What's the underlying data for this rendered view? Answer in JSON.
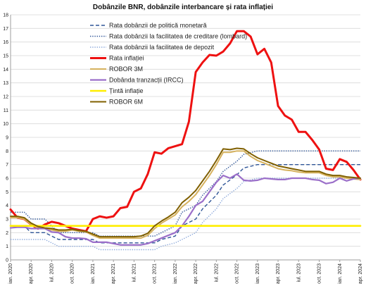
{
  "chart_data": {
    "type": "line",
    "title": "Dobânzile BNR, dobânzile interbancare și rata inflației",
    "xlabel": "",
    "ylabel": "",
    "ylim": [
      0,
      18
    ],
    "yticks": [
      0,
      1,
      2,
      3,
      4,
      5,
      6,
      7,
      8,
      9,
      10,
      11,
      12,
      13,
      14,
      15,
      16,
      17,
      18
    ],
    "xlim": [
      "2020-01",
      "2024-04"
    ],
    "xtick_labels": [
      "ian. 2020",
      "apr. 2020",
      "iul. 2020",
      "oct. 2020",
      "ian. 2021",
      "apr. 2021",
      "iul. 2021",
      "oct. 2021",
      "ian. 2022",
      "apr. 2022",
      "iul. 2022",
      "oct. 2022",
      "ian. 2023",
      "apr. 2023",
      "iul. 2023",
      "oct. 2023",
      "ian. 2024",
      "apr. 2024"
    ],
    "xtick_months": [
      "2020-01",
      "2020-04",
      "2020-07",
      "2020-10",
      "2021-01",
      "2021-04",
      "2021-07",
      "2021-10",
      "2022-01",
      "2022-04",
      "2022-07",
      "2022-10",
      "2023-01",
      "2023-04",
      "2023-07",
      "2023-10",
      "2024-01",
      "2024-04"
    ],
    "grid": true,
    "legend_position": "top-center",
    "series": [
      {
        "name": "Rata dobânzii de politică monetară",
        "color": "#2f5597",
        "style": "dashed",
        "width": 1.4,
        "points": [
          [
            "2020-01",
            2.5
          ],
          [
            "2020-03",
            2.5
          ],
          [
            "2020-04",
            2.0
          ],
          [
            "2020-06",
            2.0
          ],
          [
            "2020-07",
            1.75
          ],
          [
            "2020-08",
            1.5
          ],
          [
            "2021-01",
            1.5
          ],
          [
            "2021-02",
            1.25
          ],
          [
            "2021-10",
            1.25
          ],
          [
            "2021-11",
            1.5
          ],
          [
            "2022-01",
            1.75
          ],
          [
            "2022-02",
            2.5
          ],
          [
            "2022-04",
            3.0
          ],
          [
            "2022-05",
            3.75
          ],
          [
            "2022-07",
            4.75
          ],
          [
            "2022-08",
            5.5
          ],
          [
            "2022-10",
            6.25
          ],
          [
            "2022-11",
            6.75
          ],
          [
            "2023-01",
            7.0
          ],
          [
            "2024-04",
            7.0
          ]
        ]
      },
      {
        "name": "Rata dobânzii la facilitatea de creditare (lombard)",
        "color": "#2f5597",
        "style": "dotted",
        "width": 1.4,
        "points": [
          [
            "2020-01",
            3.5
          ],
          [
            "2020-03",
            3.5
          ],
          [
            "2020-04",
            3.0
          ],
          [
            "2020-06",
            3.0
          ],
          [
            "2020-07",
            2.5
          ],
          [
            "2020-08",
            2.0
          ],
          [
            "2021-01",
            2.0
          ],
          [
            "2021-02",
            1.75
          ],
          [
            "2021-10",
            1.75
          ],
          [
            "2021-11",
            2.0
          ],
          [
            "2022-01",
            2.5
          ],
          [
            "2022-02",
            3.5
          ],
          [
            "2022-04",
            4.0
          ],
          [
            "2022-05",
            4.75
          ],
          [
            "2022-07",
            5.75
          ],
          [
            "2022-08",
            6.5
          ],
          [
            "2022-10",
            7.25
          ],
          [
            "2022-11",
            7.75
          ],
          [
            "2023-01",
            8.0
          ],
          [
            "2024-04",
            8.0
          ]
        ]
      },
      {
        "name": "Rata dobânzii la facilitatea de depozit",
        "color": "#8eaadb",
        "style": "dotted",
        "width": 1.4,
        "points": [
          [
            "2020-01",
            1.5
          ],
          [
            "2020-03",
            1.5
          ],
          [
            "2020-04",
            1.5
          ],
          [
            "2020-06",
            1.5
          ],
          [
            "2020-07",
            1.25
          ],
          [
            "2020-08",
            1.0
          ],
          [
            "2021-01",
            1.0
          ],
          [
            "2021-02",
            0.75
          ],
          [
            "2021-10",
            0.75
          ],
          [
            "2021-11",
            1.0
          ],
          [
            "2022-01",
            1.25
          ],
          [
            "2022-02",
            1.5
          ],
          [
            "2022-04",
            2.0
          ],
          [
            "2022-05",
            2.75
          ],
          [
            "2022-07",
            3.75
          ],
          [
            "2022-08",
            4.5
          ],
          [
            "2022-10",
            5.25
          ],
          [
            "2022-11",
            5.75
          ],
          [
            "2023-01",
            6.0
          ],
          [
            "2024-04",
            6.0
          ]
        ]
      },
      {
        "name": "Rata inflației",
        "color": "#ee1111",
        "style": "solid",
        "width": 3,
        "points": [
          [
            "2020-01",
            3.7
          ],
          [
            "2020-02",
            3.1
          ],
          [
            "2020-03",
            3.0
          ],
          [
            "2020-04",
            2.6
          ],
          [
            "2020-05",
            2.3
          ],
          [
            "2020-06",
            2.6
          ],
          [
            "2020-07",
            2.8
          ],
          [
            "2020-08",
            2.7
          ],
          [
            "2020-09",
            2.5
          ],
          [
            "2020-10",
            2.3
          ],
          [
            "2020-11",
            2.2
          ],
          [
            "2020-12",
            2.1
          ],
          [
            "2021-01",
            3.0
          ],
          [
            "2021-02",
            3.2
          ],
          [
            "2021-03",
            3.1
          ],
          [
            "2021-04",
            3.2
          ],
          [
            "2021-05",
            3.8
          ],
          [
            "2021-06",
            3.9
          ],
          [
            "2021-07",
            5.0
          ],
          [
            "2021-08",
            5.25
          ],
          [
            "2021-09",
            6.3
          ],
          [
            "2021-10",
            7.9
          ],
          [
            "2021-11",
            7.8
          ],
          [
            "2021-12",
            8.2
          ],
          [
            "2022-01",
            8.35
          ],
          [
            "2022-02",
            8.5
          ],
          [
            "2022-03",
            10.15
          ],
          [
            "2022-04",
            13.8
          ],
          [
            "2022-05",
            14.5
          ],
          [
            "2022-06",
            15.05
          ],
          [
            "2022-07",
            15.0
          ],
          [
            "2022-08",
            15.3
          ],
          [
            "2022-09",
            15.9
          ],
          [
            "2022-10",
            16.8
          ],
          [
            "2022-11",
            16.8
          ],
          [
            "2022-12",
            16.4
          ],
          [
            "2023-01",
            15.1
          ],
          [
            "2023-02",
            15.5
          ],
          [
            "2023-03",
            14.5
          ],
          [
            "2023-04",
            11.3
          ],
          [
            "2023-05",
            10.6
          ],
          [
            "2023-06",
            10.3
          ],
          [
            "2023-07",
            9.4
          ],
          [
            "2023-08",
            9.4
          ],
          [
            "2023-09",
            8.8
          ],
          [
            "2023-10",
            8.1
          ],
          [
            "2023-11",
            6.7
          ],
          [
            "2023-12",
            6.6
          ],
          [
            "2024-01",
            7.4
          ],
          [
            "2024-02",
            7.2
          ],
          [
            "2024-03",
            6.6
          ],
          [
            "2024-04",
            5.9
          ]
        ]
      },
      {
        "name": "ROBOR 3M",
        "color": "#d6b25e",
        "style": "solid",
        "width": 2,
        "points": [
          [
            "2020-01",
            3.1
          ],
          [
            "2020-02",
            3.1
          ],
          [
            "2020-03",
            3.0
          ],
          [
            "2020-04",
            2.6
          ],
          [
            "2020-05",
            2.35
          ],
          [
            "2020-06",
            2.3
          ],
          [
            "2020-07",
            2.2
          ],
          [
            "2020-08",
            2.1
          ],
          [
            "2020-09",
            2.1
          ],
          [
            "2020-10",
            2.2
          ],
          [
            "2020-11",
            2.1
          ],
          [
            "2020-12",
            2.05
          ],
          [
            "2021-01",
            1.8
          ],
          [
            "2021-02",
            1.6
          ],
          [
            "2021-03",
            1.6
          ],
          [
            "2021-04",
            1.6
          ],
          [
            "2021-05",
            1.6
          ],
          [
            "2021-06",
            1.6
          ],
          [
            "2021-07",
            1.6
          ],
          [
            "2021-08",
            1.6
          ],
          [
            "2021-09",
            1.8
          ],
          [
            "2021-10",
            2.3
          ],
          [
            "2021-11",
            2.7
          ],
          [
            "2021-12",
            3.0
          ],
          [
            "2022-01",
            3.3
          ],
          [
            "2022-02",
            3.9
          ],
          [
            "2022-03",
            4.3
          ],
          [
            "2022-04",
            4.8
          ],
          [
            "2022-05",
            5.5
          ],
          [
            "2022-06",
            6.2
          ],
          [
            "2022-07",
            7.0
          ],
          [
            "2022-08",
            7.9
          ],
          [
            "2022-09",
            7.9
          ],
          [
            "2022-10",
            8.0
          ],
          [
            "2022-11",
            8.0
          ],
          [
            "2022-12",
            7.6
          ],
          [
            "2023-01",
            7.3
          ],
          [
            "2023-02",
            7.1
          ],
          [
            "2023-03",
            6.9
          ],
          [
            "2023-04",
            6.7
          ],
          [
            "2023-05",
            6.6
          ],
          [
            "2023-06",
            6.55
          ],
          [
            "2023-07",
            6.45
          ],
          [
            "2023-08",
            6.4
          ],
          [
            "2023-09",
            6.4
          ],
          [
            "2023-10",
            6.4
          ],
          [
            "2023-11",
            6.2
          ],
          [
            "2023-12",
            6.1
          ],
          [
            "2024-01",
            6.1
          ],
          [
            "2024-02",
            6.0
          ],
          [
            "2024-03",
            5.95
          ],
          [
            "2024-04",
            5.9
          ]
        ]
      },
      {
        "name": "Dobânda tranzacții (IRCC)",
        "color": "#9b6fc9",
        "style": "solid",
        "width": 2.2,
        "points": [
          [
            "2020-01",
            2.35
          ],
          [
            "2020-02",
            2.4
          ],
          [
            "2020-03",
            2.4
          ],
          [
            "2020-04",
            2.3
          ],
          [
            "2020-05",
            2.3
          ],
          [
            "2020-06",
            2.3
          ],
          [
            "2020-07",
            2.05
          ],
          [
            "2020-08",
            2.0
          ],
          [
            "2020-09",
            1.7
          ],
          [
            "2020-10",
            1.6
          ],
          [
            "2020-11",
            1.6
          ],
          [
            "2020-12",
            1.55
          ],
          [
            "2021-01",
            1.3
          ],
          [
            "2021-02",
            1.3
          ],
          [
            "2021-03",
            1.3
          ],
          [
            "2021-04",
            1.2
          ],
          [
            "2021-05",
            1.1
          ],
          [
            "2021-06",
            1.1
          ],
          [
            "2021-07",
            1.1
          ],
          [
            "2021-08",
            1.1
          ],
          [
            "2021-09",
            1.2
          ],
          [
            "2021-10",
            1.4
          ],
          [
            "2021-11",
            1.6
          ],
          [
            "2021-12",
            1.8
          ],
          [
            "2022-01",
            2.0
          ],
          [
            "2022-02",
            2.5
          ],
          [
            "2022-03",
            3.2
          ],
          [
            "2022-04",
            4.0
          ],
          [
            "2022-05",
            4.3
          ],
          [
            "2022-06",
            5.0
          ],
          [
            "2022-07",
            5.7
          ],
          [
            "2022-08",
            6.2
          ],
          [
            "2022-09",
            6.0
          ],
          [
            "2022-10",
            6.3
          ],
          [
            "2022-11",
            5.85
          ],
          [
            "2022-12",
            5.8
          ],
          [
            "2023-01",
            5.85
          ],
          [
            "2023-02",
            6.0
          ],
          [
            "2023-03",
            5.95
          ],
          [
            "2023-04",
            5.9
          ],
          [
            "2023-05",
            5.9
          ],
          [
            "2023-06",
            6.0
          ],
          [
            "2023-07",
            6.0
          ],
          [
            "2023-08",
            6.0
          ],
          [
            "2023-09",
            5.9
          ],
          [
            "2023-10",
            5.85
          ],
          [
            "2023-11",
            5.6
          ],
          [
            "2023-12",
            5.7
          ],
          [
            "2024-01",
            6.0
          ],
          [
            "2024-02",
            5.8
          ],
          [
            "2024-03",
            5.95
          ],
          [
            "2024-04",
            6.0
          ]
        ]
      },
      {
        "name": "Țintă inflație",
        "color": "#ffee00",
        "style": "solid",
        "width": 2.6,
        "points": [
          [
            "2020-01",
            2.5
          ],
          [
            "2024-04",
            2.5
          ]
        ]
      },
      {
        "name": "ROBOR 6M",
        "color": "#806000",
        "style": "solid",
        "width": 2,
        "points": [
          [
            "2020-01",
            3.2
          ],
          [
            "2020-02",
            3.2
          ],
          [
            "2020-03",
            3.1
          ],
          [
            "2020-04",
            2.7
          ],
          [
            "2020-05",
            2.45
          ],
          [
            "2020-06",
            2.35
          ],
          [
            "2020-07",
            2.3
          ],
          [
            "2020-08",
            2.2
          ],
          [
            "2020-09",
            2.2
          ],
          [
            "2020-10",
            2.25
          ],
          [
            "2020-11",
            2.15
          ],
          [
            "2020-12",
            2.1
          ],
          [
            "2021-01",
            1.9
          ],
          [
            "2021-02",
            1.7
          ],
          [
            "2021-03",
            1.7
          ],
          [
            "2021-04",
            1.7
          ],
          [
            "2021-05",
            1.7
          ],
          [
            "2021-06",
            1.7
          ],
          [
            "2021-07",
            1.7
          ],
          [
            "2021-08",
            1.75
          ],
          [
            "2021-09",
            1.95
          ],
          [
            "2021-10",
            2.5
          ],
          [
            "2021-11",
            2.85
          ],
          [
            "2021-12",
            3.15
          ],
          [
            "2022-01",
            3.5
          ],
          [
            "2022-02",
            4.2
          ],
          [
            "2022-03",
            4.6
          ],
          [
            "2022-04",
            5.1
          ],
          [
            "2022-05",
            5.8
          ],
          [
            "2022-06",
            6.5
          ],
          [
            "2022-07",
            7.3
          ],
          [
            "2022-08",
            8.15
          ],
          [
            "2022-09",
            8.1
          ],
          [
            "2022-10",
            8.2
          ],
          [
            "2022-11",
            8.15
          ],
          [
            "2022-12",
            7.8
          ],
          [
            "2023-01",
            7.5
          ],
          [
            "2023-02",
            7.3
          ],
          [
            "2023-03",
            7.1
          ],
          [
            "2023-04",
            6.9
          ],
          [
            "2023-05",
            6.8
          ],
          [
            "2023-06",
            6.7
          ],
          [
            "2023-07",
            6.6
          ],
          [
            "2023-08",
            6.5
          ],
          [
            "2023-09",
            6.5
          ],
          [
            "2023-10",
            6.5
          ],
          [
            "2023-11",
            6.3
          ],
          [
            "2023-12",
            6.2
          ],
          [
            "2024-01",
            6.2
          ],
          [
            "2024-02",
            6.1
          ],
          [
            "2024-03",
            6.05
          ],
          [
            "2024-04",
            6.0
          ]
        ]
      }
    ]
  }
}
